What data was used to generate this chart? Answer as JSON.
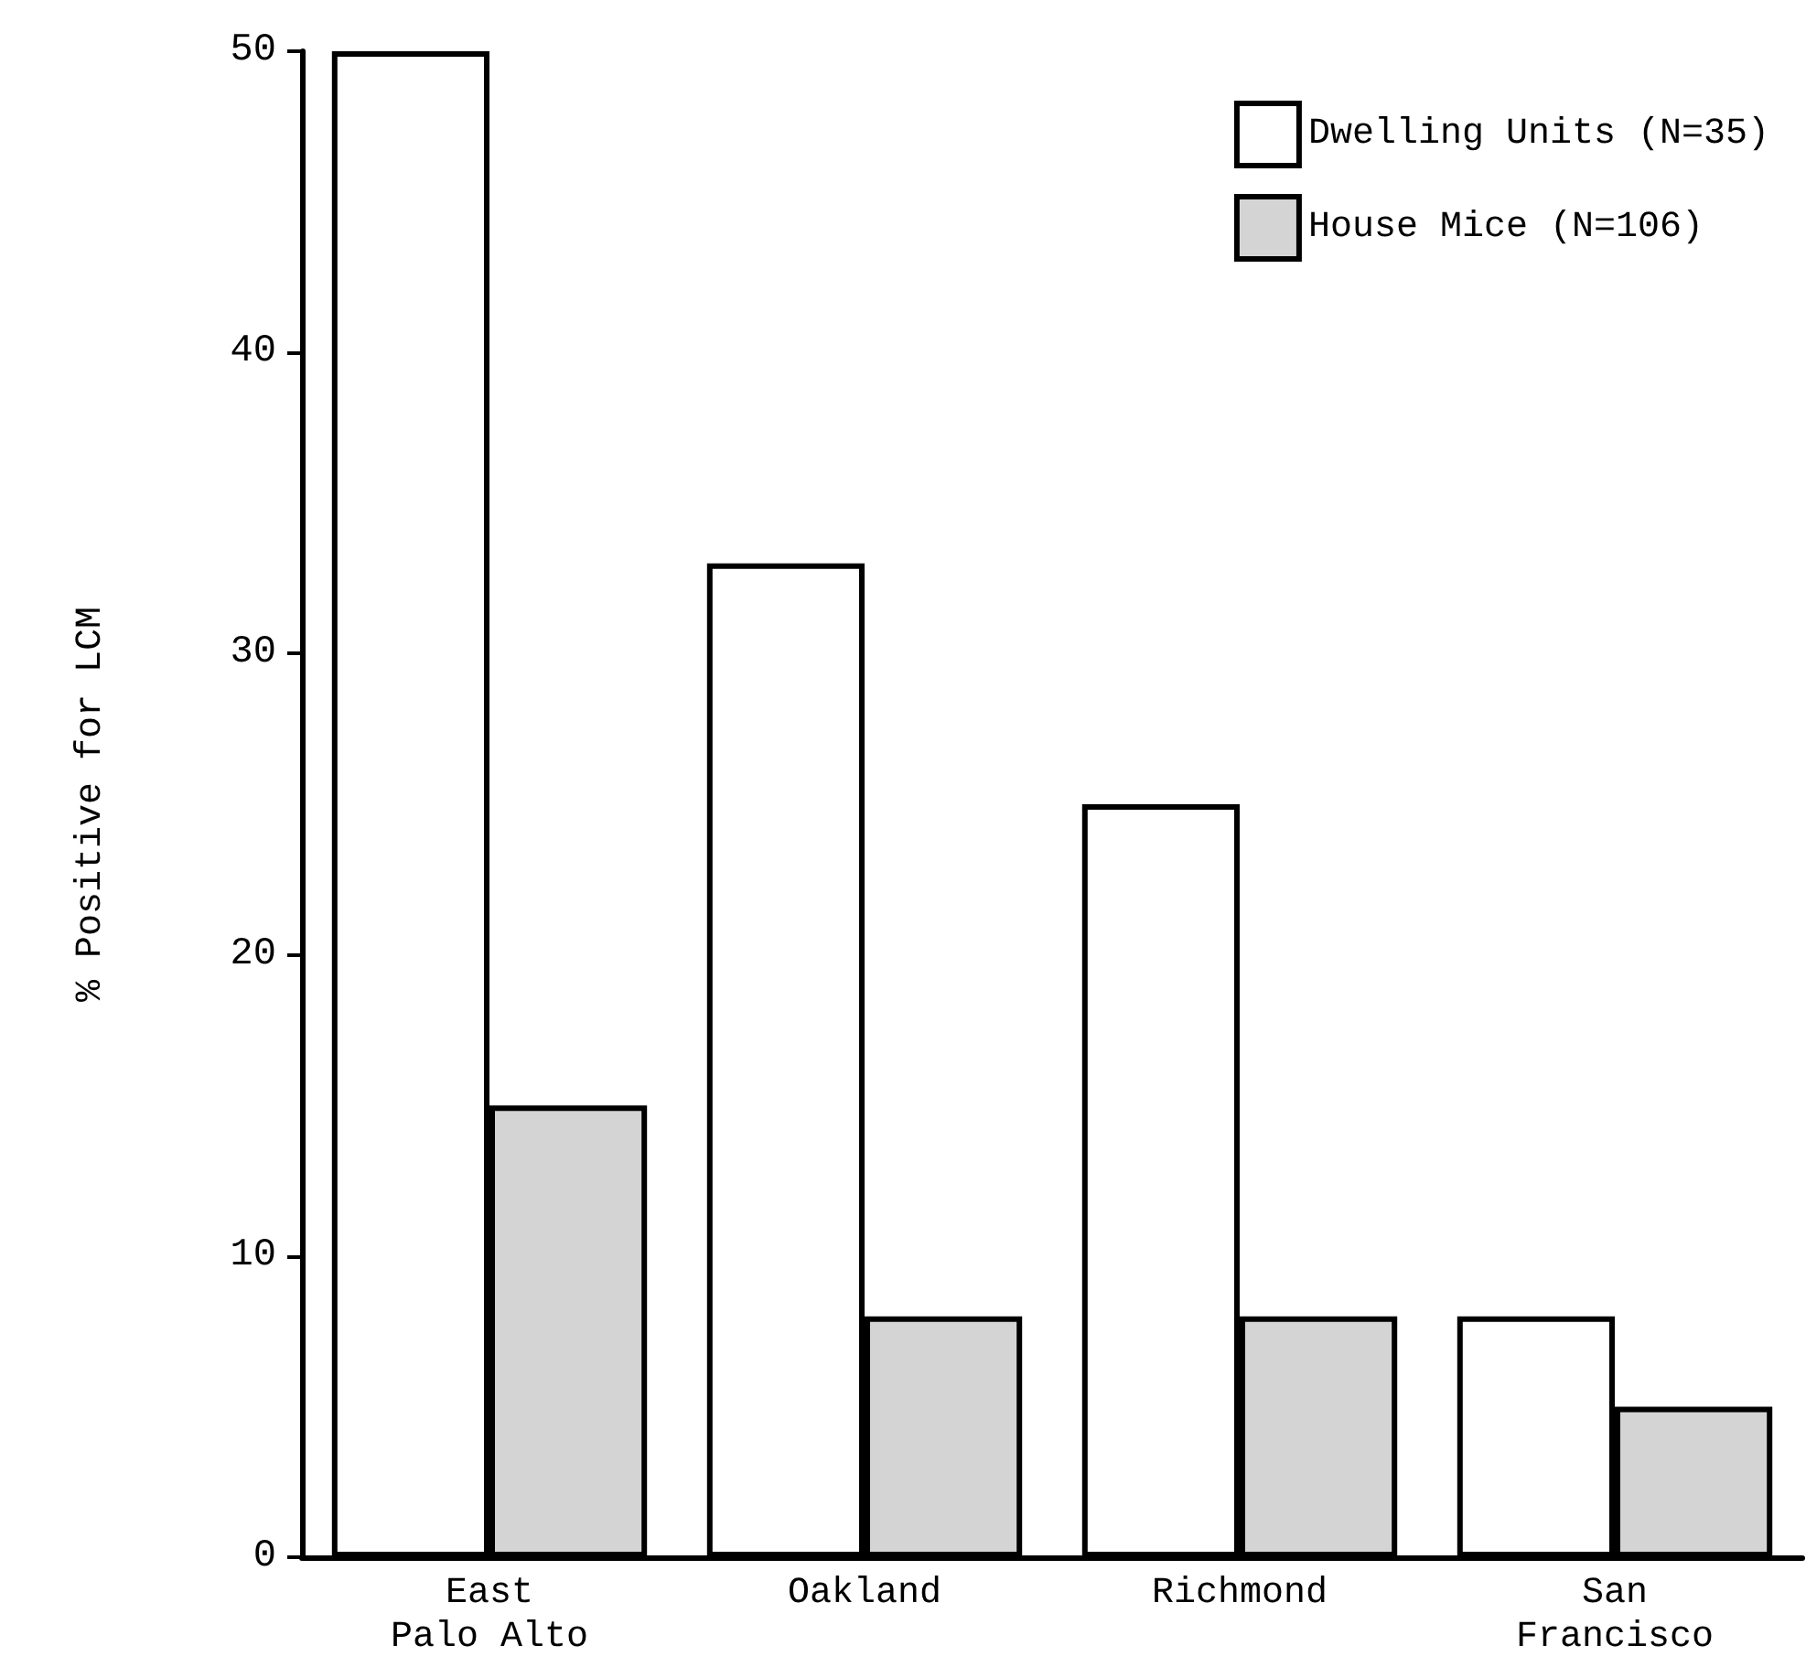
{
  "chart_data": {
    "type": "bar",
    "ylabel": "% Positive for LCM",
    "categories": [
      "East Palo Alto",
      "Oakland",
      "Richmond",
      "San Francisco"
    ],
    "series": [
      {
        "name": "Dwelling Units (N=35)",
        "color": "#ffffff",
        "values": [
          50,
          33,
          25,
          8
        ]
      },
      {
        "name": "House Mice (N=106)",
        "color": "#d4d4d4",
        "values": [
          15,
          8,
          8,
          5
        ]
      }
    ],
    "ylim": [
      0,
      50
    ],
    "yticks": [
      0,
      10,
      20,
      30,
      40,
      50
    ],
    "grid": false,
    "legend": "top right"
  }
}
